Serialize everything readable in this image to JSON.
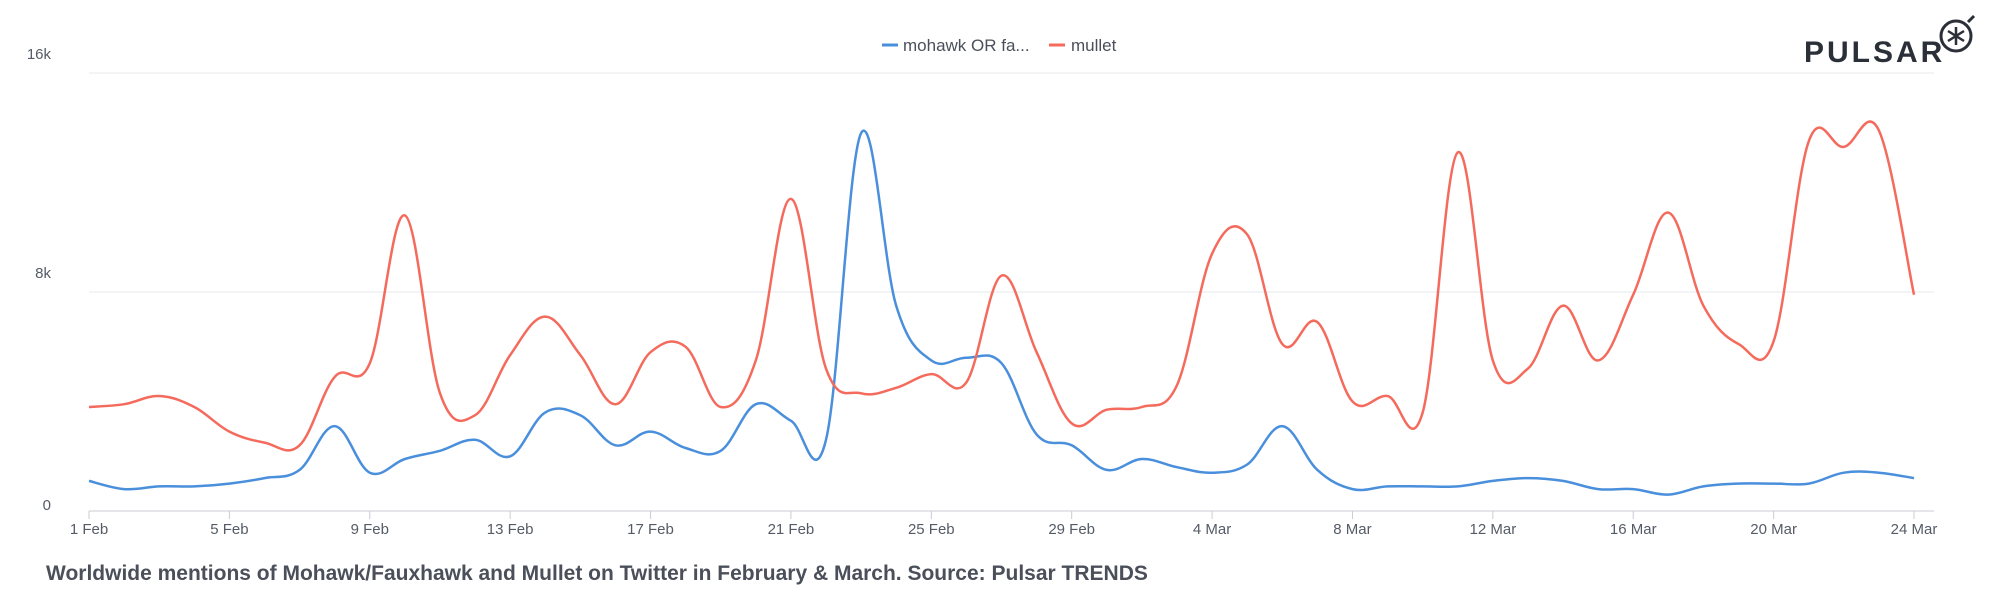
{
  "logo": {
    "text": "PULSAR"
  },
  "caption": "Worldwide mentions of Mohawk/Fauxhawk and Mullet on Twitter in February & March. Source: Pulsar TRENDS",
  "colors": {
    "mohawk": "#4a8fdc",
    "mullet": "#f46b5d",
    "grid": "#e6e8ec",
    "axis": "#c8ccd4"
  },
  "chart_data": {
    "type": "line",
    "title": "Worldwide mentions of Mohawk/Fauxhawk and Mullet on Twitter in February & March. Source: Pulsar TRENDS",
    "xlabel": "",
    "ylabel": "",
    "ylim": [
      0,
      16000
    ],
    "yticks": [
      0,
      8000,
      16000
    ],
    "ytick_labels": [
      "0",
      "8k",
      "16k"
    ],
    "grid": "horizontal",
    "legend": "top-center",
    "x_dates": [
      "1 Feb",
      "2 Feb",
      "3 Feb",
      "4 Feb",
      "5 Feb",
      "6 Feb",
      "7 Feb",
      "8 Feb",
      "9 Feb",
      "10 Feb",
      "11 Feb",
      "12 Feb",
      "13 Feb",
      "14 Feb",
      "15 Feb",
      "16 Feb",
      "17 Feb",
      "18 Feb",
      "19 Feb",
      "20 Feb",
      "21 Feb",
      "22 Feb",
      "23 Feb",
      "24 Feb",
      "25 Feb",
      "26 Feb",
      "27 Feb",
      "28 Feb",
      "29 Feb",
      "1 Mar",
      "2 Mar",
      "3 Mar",
      "4 Mar",
      "5 Mar",
      "6 Mar",
      "7 Mar",
      "8 Mar",
      "9 Mar",
      "10 Mar",
      "11 Mar",
      "12 Mar",
      "13 Mar",
      "14 Mar",
      "15 Mar",
      "16 Mar",
      "17 Mar",
      "18 Mar",
      "19 Mar",
      "20 Mar",
      "21 Mar",
      "22 Mar",
      "23 Mar",
      "24 Mar"
    ],
    "x_tick_labels": [
      "1 Feb",
      "5 Feb",
      "9 Feb",
      "13 Feb",
      "17 Feb",
      "21 Feb",
      "25 Feb",
      "29 Feb",
      "4 Mar",
      "8 Mar",
      "12 Mar",
      "16 Mar",
      "20 Mar",
      "24 Mar"
    ],
    "x_tick_every": 4,
    "series": [
      {
        "name": "mohawk OR fa...",
        "color": "#4a8fdc",
        "values": [
          1100,
          800,
          900,
          900,
          1000,
          1200,
          1500,
          3100,
          1400,
          1900,
          2200,
          2600,
          2000,
          3600,
          3500,
          2400,
          2900,
          2300,
          2200,
          3900,
          3300,
          2600,
          13800,
          7500,
          5500,
          5600,
          5400,
          2800,
          2400,
          1500,
          1900,
          1600,
          1400,
          1700,
          3100,
          1500,
          800,
          900,
          900,
          900,
          1100,
          1200,
          1100,
          800,
          800,
          600,
          900,
          1000,
          1000,
          1000,
          1400,
          1400,
          1200
        ]
      },
      {
        "name": "mullet",
        "color": "#f46b5d",
        "values": [
          3800,
          3900,
          4200,
          3800,
          2900,
          2500,
          2400,
          4900,
          5400,
          10800,
          4300,
          3500,
          5700,
          7100,
          5700,
          3900,
          5800,
          6000,
          3800,
          5500,
          11400,
          5200,
          4300,
          4500,
          5000,
          4700,
          8600,
          5800,
          3200,
          3700,
          3800,
          4600,
          9400,
          10100,
          6100,
          6900,
          4000,
          4200,
          3600,
          13100,
          5500,
          5200,
          7500,
          5500,
          7900,
          10900,
          7500,
          6100,
          6200,
          13500,
          13300,
          13900,
          7900
        ]
      }
    ]
  }
}
